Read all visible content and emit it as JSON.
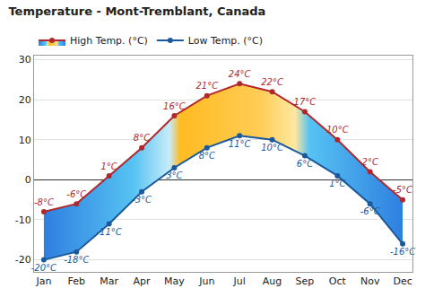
{
  "chart_data": {
    "type": "line",
    "title": "Temperature - Mont-Tremblant, Canada",
    "categories": [
      "Jan",
      "Feb",
      "Mar",
      "Apr",
      "May",
      "Jun",
      "Jul",
      "Aug",
      "Sep",
      "Oct",
      "Nov",
      "Dec"
    ],
    "series": [
      {
        "name": "Low Temp. (°C)",
        "color": "#1a5a9c",
        "marker": "circle",
        "values": [
          -20,
          -18,
          -11,
          -3,
          3,
          8,
          11,
          10,
          6,
          1,
          -6,
          -16
        ],
        "value_labels": [
          "-20°C",
          "-18°C",
          "-11°C",
          "-3°C",
          "3°C",
          "8°C",
          "11°C",
          "10°C",
          "6°C",
          "1°C",
          "-6°C",
          "-16°C"
        ]
      },
      {
        "name": "High Temp. (°C)",
        "color": "#b0282e",
        "marker": "circle",
        "values": [
          -8,
          -6,
          1,
          8,
          16,
          21,
          24,
          22,
          17,
          10,
          2,
          -5
        ],
        "value_labels": [
          "-8°C",
          "-6°C",
          "1°C",
          "8°C",
          "16°C",
          "21°C",
          "24°C",
          "22°C",
          "17°C",
          "10°C",
          "2°C",
          "-5°C"
        ]
      }
    ],
    "ylim": [
      -23,
      31
    ],
    "yticks": [
      -20,
      -10,
      0,
      10,
      20,
      30
    ],
    "grid": true,
    "legend": "top-left",
    "data_labels": true
  }
}
